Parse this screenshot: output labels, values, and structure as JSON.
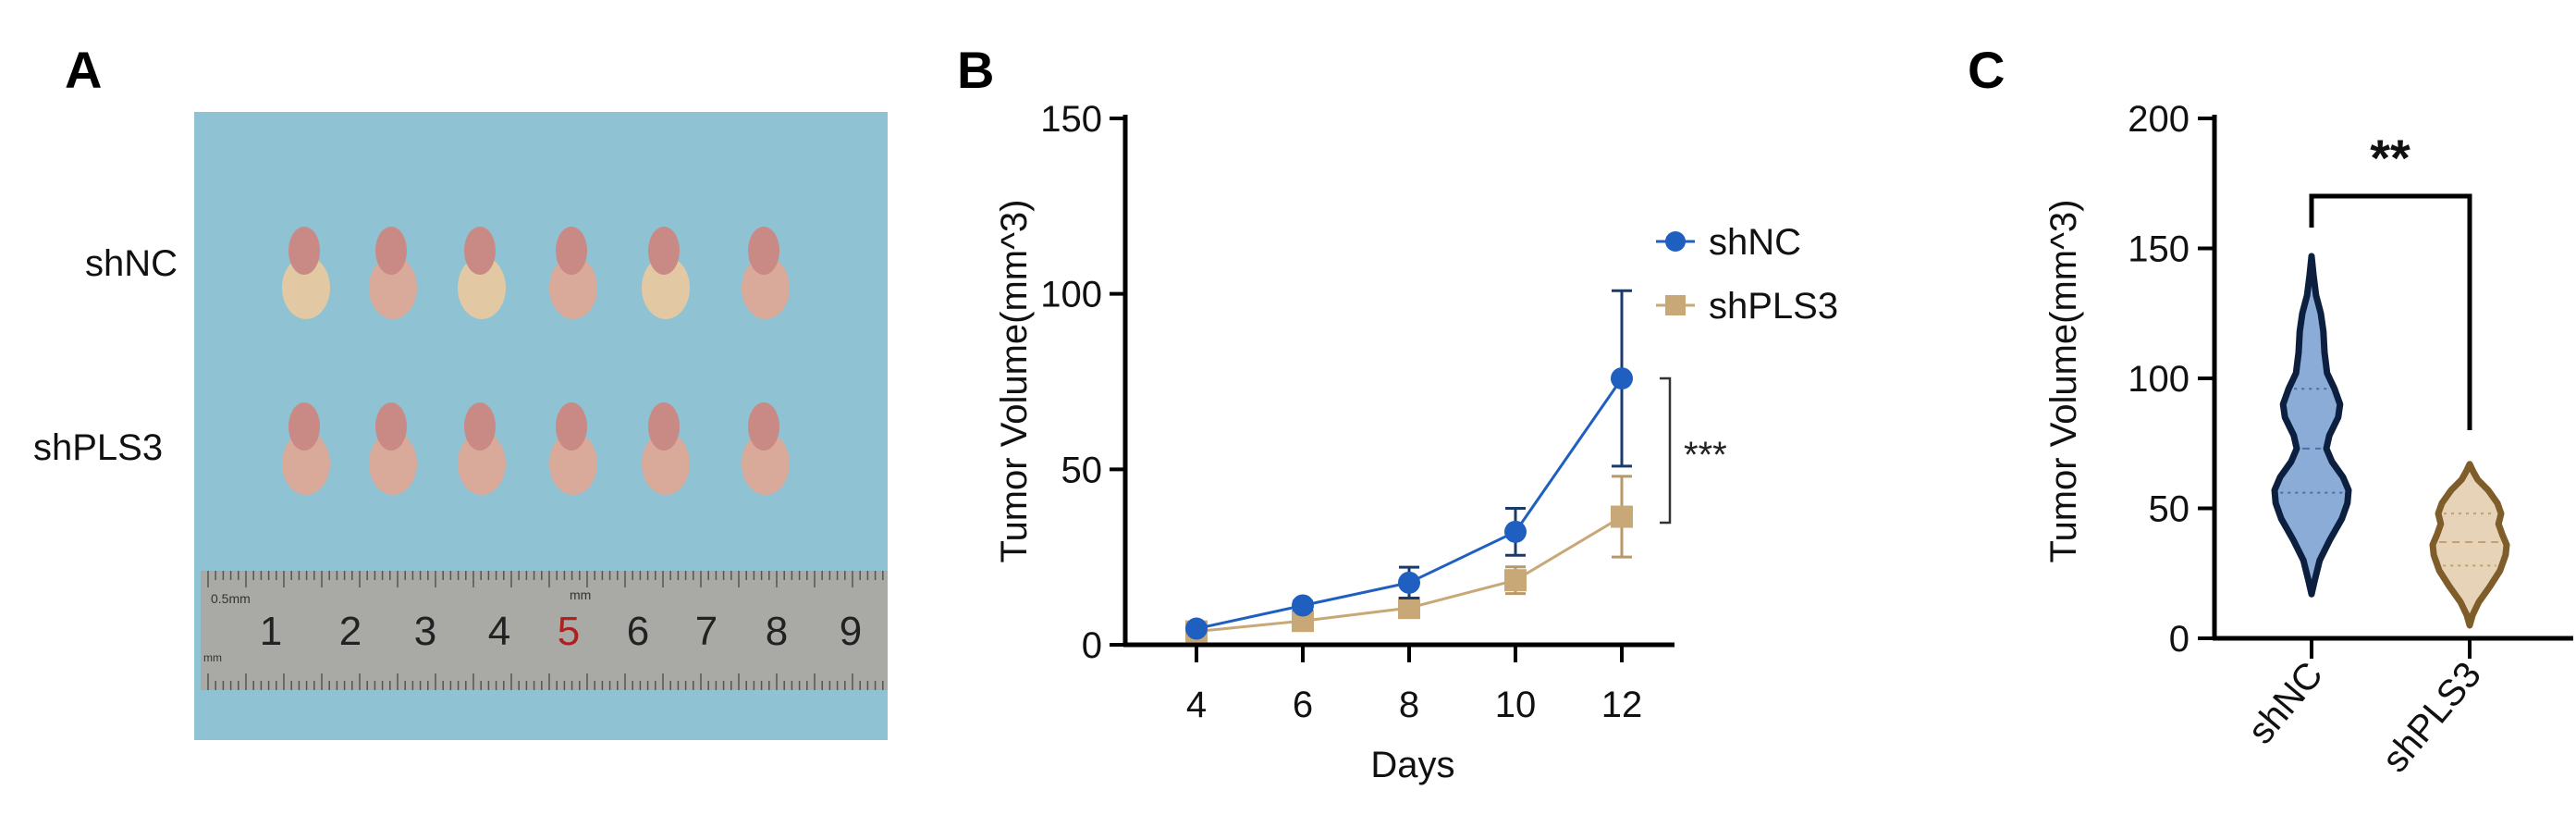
{
  "panels": {
    "a": "A",
    "b": "B",
    "c": "C"
  },
  "photo": {
    "row_labels": [
      "shNC",
      "shPLS3"
    ],
    "ruler_numbers": [
      "1",
      "2",
      "3",
      "4",
      "5",
      "6",
      "7",
      "8",
      "9"
    ],
    "ruler_small_text": [
      "0.5mm",
      "mm",
      "mm"
    ],
    "colors": {
      "background": "#8fc3d3",
      "tumor": "#c98a86",
      "tumor_light": "#e3c9a3",
      "ruler": "#a9a9a6"
    }
  },
  "chart_data": [
    {
      "type": "line",
      "panel": "B",
      "xlabel": "Days",
      "ylabel": "Tumor Volume(mm^3)",
      "x": [
        4,
        6,
        8,
        10,
        12
      ],
      "xticks": [
        "4",
        "6",
        "8",
        "10",
        "12"
      ],
      "yticks": [
        "0",
        "50",
        "100",
        "150"
      ],
      "ylim": [
        0,
        150
      ],
      "grid": false,
      "legend_position": "top-right",
      "series": [
        {
          "name": "shNC",
          "color": "#1f5fbf",
          "marker": "circle",
          "values": [
            4.6,
            11.2,
            17.7,
            32.2,
            75.9
          ],
          "errors": [
            0.8,
            1.2,
            4.4,
            6.7,
            25.0
          ]
        },
        {
          "name": "shPLS3",
          "color": "#c9a878",
          "marker": "square",
          "values": [
            3.8,
            6.8,
            10.5,
            18.4,
            36.5
          ],
          "errors": [
            0.8,
            1.0,
            1.5,
            3.8,
            11.5
          ]
        }
      ],
      "annotation": "***"
    },
    {
      "type": "violin",
      "panel": "C",
      "ylabel": "Tumor Volume(mm^3)",
      "categories": [
        "shNC",
        "shPLS3"
      ],
      "yticks": [
        "0",
        "50",
        "100",
        "150",
        "200"
      ],
      "ylim": [
        0,
        200
      ],
      "grid": false,
      "groups": [
        {
          "name": "shNC",
          "fill": "#8aacd6",
          "stroke": "#0d1f3f",
          "quartiles": [
            56,
            73,
            96
          ],
          "profile": [
            [
              17,
              0
            ],
            [
              22,
              0.08
            ],
            [
              30,
              0.22
            ],
            [
              38,
              0.5
            ],
            [
              46,
              0.82
            ],
            [
              52,
              0.97
            ],
            [
              57,
              1
            ],
            [
              62,
              0.85
            ],
            [
              68,
              0.55
            ],
            [
              73,
              0.4
            ],
            [
              78,
              0.48
            ],
            [
              85,
              0.72
            ],
            [
              90,
              0.77
            ],
            [
              96,
              0.62
            ],
            [
              102,
              0.42
            ],
            [
              110,
              0.35
            ],
            [
              118,
              0.32
            ],
            [
              125,
              0.25
            ],
            [
              132,
              0.12
            ],
            [
              140,
              0.05
            ],
            [
              147,
              0
            ]
          ]
        },
        {
          "name": "shPLS3",
          "fill": "#e7d4b8",
          "stroke": "#7f5d2a",
          "quartiles": [
            28,
            37,
            48
          ],
          "profile": [
            [
              5,
              0
            ],
            [
              9,
              0.08
            ],
            [
              14,
              0.25
            ],
            [
              20,
              0.55
            ],
            [
              26,
              0.82
            ],
            [
              32,
              0.97
            ],
            [
              36,
              1
            ],
            [
              40,
              0.88
            ],
            [
              44,
              0.78
            ],
            [
              48,
              0.85
            ],
            [
              52,
              0.75
            ],
            [
              57,
              0.5
            ],
            [
              61,
              0.22
            ],
            [
              64,
              0.1
            ],
            [
              67,
              0
            ]
          ]
        }
      ],
      "annotation": "**"
    }
  ]
}
